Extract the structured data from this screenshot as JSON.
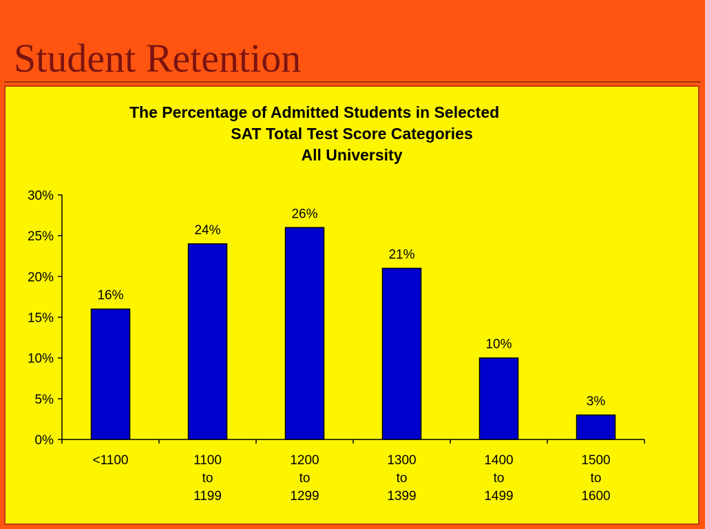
{
  "slide": {
    "title": "Student Retention"
  },
  "chart_data": {
    "type": "bar",
    "title_lines": [
      "The Percentage of Admitted Students in Selected",
      "SAT Total Test Score Categories",
      "All University"
    ],
    "categories": [
      [
        "<1100"
      ],
      [
        "1100",
        "to",
        "1199"
      ],
      [
        "1200",
        "to",
        "1299"
      ],
      [
        "1300",
        "to",
        "1399"
      ],
      [
        "1400",
        "to",
        "1499"
      ],
      [
        "1500",
        "to",
        "1600"
      ]
    ],
    "values": [
      16,
      24,
      26,
      21,
      10,
      3
    ],
    "value_labels": [
      "16%",
      "24%",
      "26%",
      "21%",
      "10%",
      "3%"
    ],
    "ylim": [
      0,
      30
    ],
    "yticks": [
      0,
      5,
      10,
      15,
      20,
      25,
      30
    ],
    "ytick_labels": [
      "0%",
      "5%",
      "10%",
      "15%",
      "20%",
      "25%",
      "30%"
    ],
    "xlabel": "",
    "ylabel": "",
    "grid": false,
    "legend": "none",
    "colors": {
      "bar_fill": "#0000CC",
      "bar_stroke": "#000000",
      "background": "#FDF500",
      "axis": "#000000"
    }
  },
  "colors": {
    "slide_background": "#FF5510",
    "title_color": "#7A1410",
    "panel_border": "#C03A10"
  }
}
